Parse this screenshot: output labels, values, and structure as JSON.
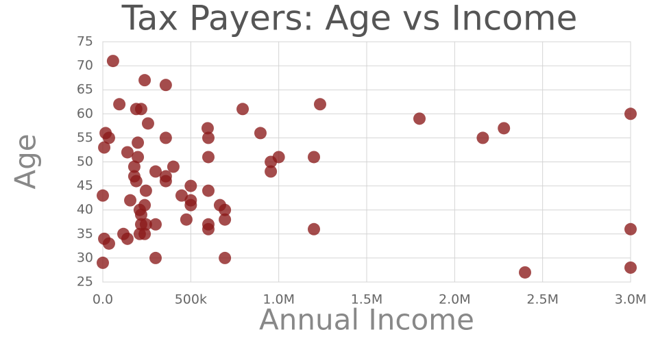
{
  "chart_data": {
    "type": "scatter",
    "title": "Tax Payers: Age vs Income",
    "x_label": "Annual Income",
    "y_label": "Age",
    "color": "#8b1a1a",
    "grid": true,
    "xlim": [
      0,
      3000000
    ],
    "ylim": [
      25,
      75
    ],
    "xticks": [
      {
        "value": 0,
        "label": "0.0"
      },
      {
        "value": 500000,
        "label": "500k"
      },
      {
        "value": 1000000,
        "label": "1.0M"
      },
      {
        "value": 1500000,
        "label": "1.5M"
      },
      {
        "value": 2000000,
        "label": "2.0M"
      },
      {
        "value": 2500000,
        "label": "2.5M"
      },
      {
        "value": 3000000,
        "label": "3.0M"
      }
    ],
    "yticks": [
      25,
      30,
      35,
      40,
      45,
      50,
      55,
      60,
      65,
      70,
      75
    ],
    "x": [
      58000,
      94000,
      238000,
      358000,
      795000,
      1235000,
      1800000,
      2160000,
      2280000,
      3000000,
      190000,
      218000,
      257000,
      16000,
      35000,
      8000,
      140000,
      199000,
      199000,
      358000,
      596000,
      600000,
      600000,
      896000,
      1000000,
      955000,
      955000,
      1200000,
      179000,
      179000,
      190000,
      300000,
      358000,
      358000,
      401000,
      245000,
      500000,
      600000,
      0,
      448000,
      500000,
      500000,
      156000,
      238000,
      210000,
      218000,
      666000,
      694000,
      694000,
      475000,
      600000,
      600000,
      218000,
      245000,
      300000,
      238000,
      210000,
      117000,
      140000,
      8000,
      35000,
      0,
      300000,
      694000,
      1200000,
      3000000,
      3000000,
      2400000
    ],
    "y": [
      71,
      62,
      67,
      66,
      61,
      62,
      59,
      55,
      57,
      60,
      61,
      61,
      58,
      56,
      55,
      53,
      52,
      54,
      51,
      55,
      57,
      55,
      51,
      56,
      51,
      50,
      48,
      51,
      49,
      47,
      46,
      48,
      47,
      46,
      49,
      44,
      45,
      44,
      43,
      43,
      42,
      41,
      42,
      41,
      40,
      39,
      41,
      40,
      38,
      38,
      37,
      36,
      37,
      37,
      37,
      35,
      35,
      35,
      34,
      34,
      33,
      29,
      30,
      30,
      36,
      36,
      28,
      27
    ]
  }
}
